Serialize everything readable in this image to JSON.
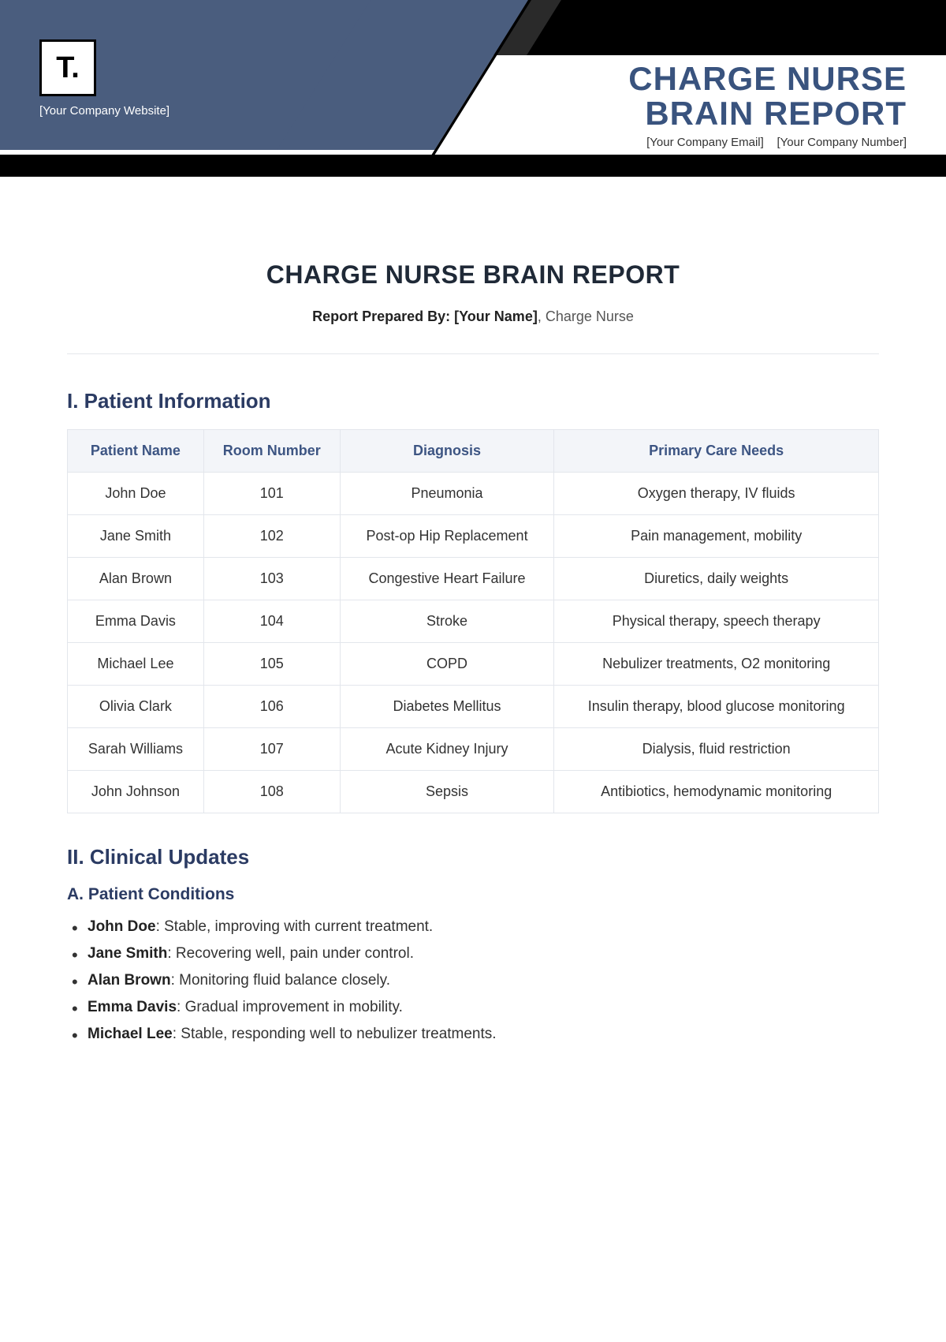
{
  "header": {
    "logo_text": "T.",
    "company_website": "[Your Company Website]",
    "title_line1": "CHARGE NURSE",
    "title_line2": "BRAIN REPORT",
    "company_email": "[Your Company Email]",
    "company_number": "[Your Company Number]"
  },
  "doc": {
    "title": "CHARGE NURSE BRAIN REPORT",
    "byline_label": "Report Prepared By: [Your Name]",
    "byline_role": ", Charge Nurse"
  },
  "section1": {
    "heading": "I. Patient Information",
    "columns": [
      "Patient Name",
      "Room Number",
      "Diagnosis",
      "Primary Care Needs"
    ],
    "rows": [
      [
        "John Doe",
        "101",
        "Pneumonia",
        "Oxygen therapy, IV fluids"
      ],
      [
        "Jane Smith",
        "102",
        "Post-op Hip Replacement",
        "Pain management, mobility"
      ],
      [
        "Alan Brown",
        "103",
        "Congestive Heart Failure",
        "Diuretics, daily weights"
      ],
      [
        "Emma Davis",
        "104",
        "Stroke",
        "Physical therapy, speech therapy"
      ],
      [
        "Michael Lee",
        "105",
        "COPD",
        "Nebulizer treatments, O2 monitoring"
      ],
      [
        "Olivia Clark",
        "106",
        "Diabetes Mellitus",
        "Insulin therapy, blood glucose monitoring"
      ],
      [
        "Sarah Williams",
        "107",
        "Acute Kidney Injury",
        "Dialysis, fluid restriction"
      ],
      [
        "John Johnson",
        "108",
        "Sepsis",
        "Antibiotics, hemodynamic monitoring"
      ]
    ]
  },
  "section2": {
    "heading": "II. Clinical Updates",
    "sub_a": "A. Patient Conditions",
    "conditions": [
      {
        "name": "John Doe",
        "text": ": Stable, improving with current treatment."
      },
      {
        "name": "Jane Smith",
        "text": ": Recovering well, pain under control."
      },
      {
        "name": "Alan Brown",
        "text": ": Monitoring fluid balance closely."
      },
      {
        "name": "Emma Davis",
        "text": ": Gradual improvement in mobility."
      },
      {
        "name": "Michael Lee",
        "text": ": Stable, responding well to nebulizer treatments."
      }
    ]
  }
}
